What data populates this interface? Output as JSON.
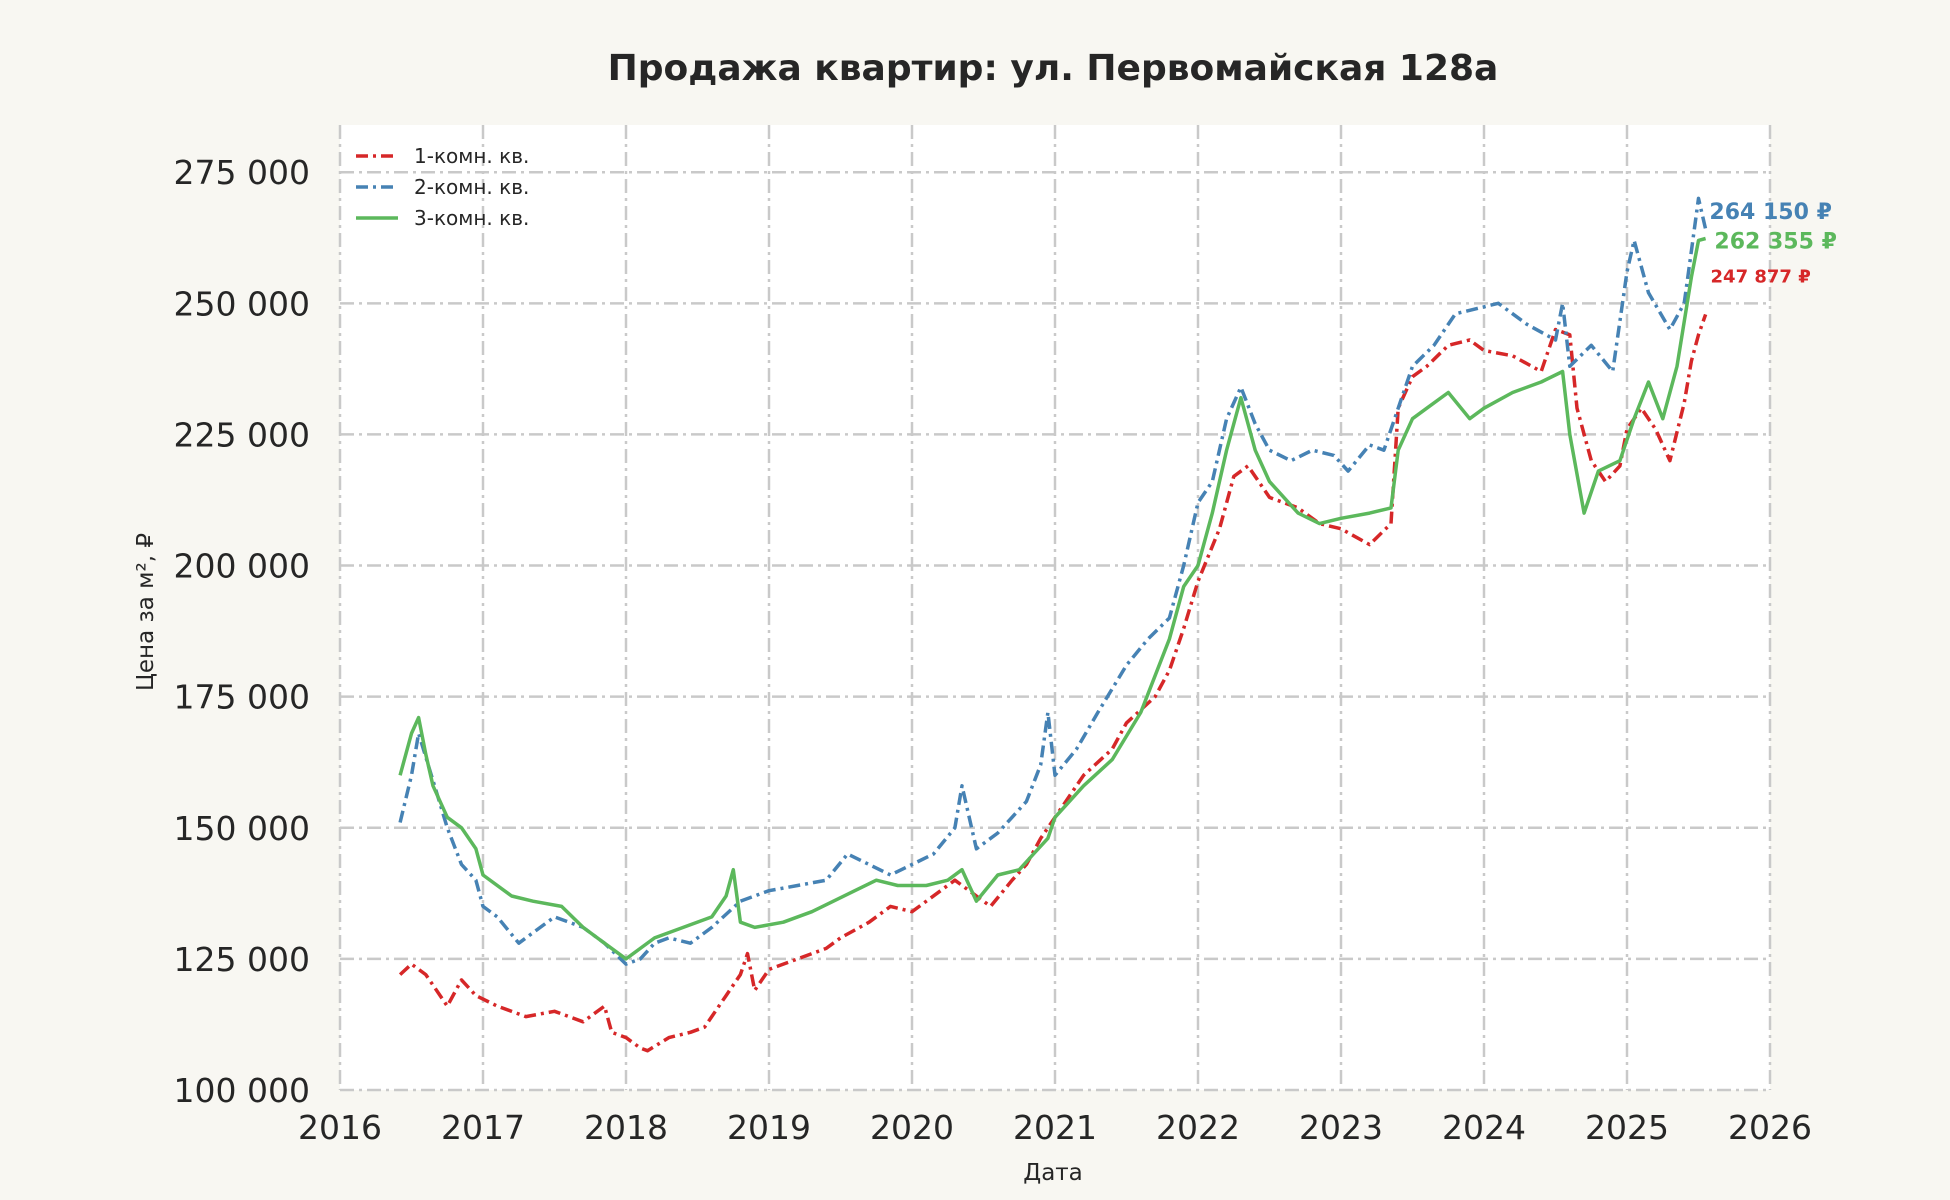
{
  "chart_data": {
    "type": "line",
    "title": "Продажа квартир: ул. Первомайская 128а",
    "xlabel": "Дата",
    "ylabel": "Цена за м², ₽",
    "xlim": [
      2016,
      2026
    ],
    "ylim": [
      100000,
      284000
    ],
    "x_ticks": [
      2016,
      2017,
      2018,
      2019,
      2020,
      2021,
      2022,
      2023,
      2024,
      2025,
      2026
    ],
    "x_tick_labels": [
      "2016",
      "2017",
      "2018",
      "2019",
      "2020",
      "2021",
      "2022",
      "2023",
      "2024",
      "2025",
      "2026"
    ],
    "y_ticks": [
      100000,
      125000,
      150000,
      175000,
      200000,
      225000,
      250000,
      275000
    ],
    "y_tick_labels": [
      "100 000",
      "125 000",
      "150 000",
      "175 000",
      "200 000",
      "225 000",
      "250 000",
      "275 000"
    ],
    "grid": true,
    "legend_position": "top-left",
    "series": [
      {
        "name": "1-комн. кв.",
        "color": "#d62728",
        "line_style": "dash-dot",
        "end_label": "247 877 ₽",
        "x": [
          2016.42,
          2016.5,
          2016.6,
          2016.75,
          2016.85,
          2016.95,
          2017.1,
          2017.3,
          2017.5,
          2017.7,
          2017.85,
          2017.9,
          2018.0,
          2018.1,
          2018.15,
          2018.3,
          2018.45,
          2018.55,
          2018.7,
          2018.8,
          2018.85,
          2018.9,
          2019.0,
          2019.2,
          2019.4,
          2019.5,
          2019.7,
          2019.85,
          2020.0,
          2020.2,
          2020.3,
          2020.45,
          2020.55,
          2020.7,
          2020.8,
          2020.9,
          2021.0,
          2021.2,
          2021.4,
          2021.5,
          2021.7,
          2021.8,
          2021.9,
          2022.0,
          2022.15,
          2022.25,
          2022.35,
          2022.5,
          2022.7,
          2022.85,
          2023.0,
          2023.2,
          2023.35,
          2023.4,
          2023.5,
          2023.6,
          2023.75,
          2023.9,
          2024.0,
          2024.2,
          2024.4,
          2024.5,
          2024.6,
          2024.65,
          2024.75,
          2024.85,
          2024.95,
          2025.0,
          2025.1,
          2025.2,
          2025.3,
          2025.4,
          2025.45,
          2025.5,
          2025.55
        ],
        "y": [
          122000,
          124000,
          122000,
          116000,
          121000,
          118000,
          116000,
          114000,
          115000,
          113000,
          116000,
          111000,
          110000,
          108000,
          107500,
          110000,
          111000,
          112000,
          118000,
          122000,
          126000,
          119000,
          123000,
          125000,
          127000,
          129000,
          132000,
          135000,
          134000,
          138000,
          140000,
          137000,
          135000,
          140000,
          143000,
          148000,
          152000,
          160000,
          165000,
          170000,
          175000,
          180000,
          188000,
          197000,
          207000,
          217000,
          219000,
          213000,
          211000,
          208000,
          207000,
          204000,
          208000,
          230000,
          236000,
          238000,
          242000,
          243000,
          241000,
          240000,
          237000,
          245000,
          244000,
          230000,
          220000,
          216000,
          219000,
          226000,
          230000,
          226000,
          220000,
          231000,
          239000,
          244000,
          247877
        ]
      },
      {
        "name": "2-комн. кв.",
        "color": "#4682b4",
        "line_style": "dash-dot",
        "end_label": "264 150 ₽",
        "x": [
          2016.42,
          2016.5,
          2016.55,
          2016.65,
          2016.75,
          2016.85,
          2016.95,
          2017.0,
          2017.1,
          2017.25,
          2017.35,
          2017.5,
          2017.7,
          2017.85,
          2018.0,
          2018.1,
          2018.2,
          2018.3,
          2018.45,
          2018.6,
          2018.8,
          2019.0,
          2019.2,
          2019.4,
          2019.55,
          2019.7,
          2019.85,
          2020.0,
          2020.15,
          2020.3,
          2020.35,
          2020.45,
          2020.6,
          2020.8,
          2020.9,
          2020.95,
          2021.0,
          2021.15,
          2021.3,
          2021.5,
          2021.65,
          2021.8,
          2021.9,
          2022.0,
          2022.1,
          2022.2,
          2022.3,
          2022.4,
          2022.5,
          2022.65,
          2022.8,
          2022.95,
          2023.05,
          2023.2,
          2023.3,
          2023.4,
          2023.5,
          2023.65,
          2023.8,
          2023.95,
          2024.1,
          2024.3,
          2024.5,
          2024.55,
          2024.6,
          2024.75,
          2024.9,
          2025.0,
          2025.05,
          2025.15,
          2025.3,
          2025.4,
          2025.45,
          2025.5,
          2025.55
        ],
        "y": [
          151000,
          160000,
          168000,
          159000,
          150000,
          143000,
          140000,
          135000,
          133000,
          128000,
          130000,
          133000,
          131000,
          128000,
          124000,
          125000,
          128000,
          129000,
          128000,
          131000,
          136000,
          138000,
          139000,
          140000,
          145000,
          143000,
          141000,
          143000,
          145000,
          150000,
          158000,
          146000,
          149000,
          155000,
          162000,
          172000,
          160000,
          165000,
          172000,
          181000,
          186000,
          190000,
          200000,
          212000,
          216000,
          228000,
          234000,
          227000,
          222000,
          220000,
          222000,
          221000,
          218000,
          223000,
          222000,
          230000,
          238000,
          242000,
          248000,
          249000,
          250000,
          246000,
          243000,
          250000,
          238000,
          242000,
          237000,
          256000,
          262000,
          252000,
          245000,
          250000,
          260000,
          270000,
          264150
        ]
      },
      {
        "name": "3-комн. кв.",
        "color": "#5cb85c",
        "line_style": "solid",
        "end_label": "262 355 ₽",
        "x": [
          2016.42,
          2016.5,
          2016.55,
          2016.6,
          2016.65,
          2016.75,
          2016.85,
          2016.95,
          2017.0,
          2017.2,
          2017.35,
          2017.55,
          2017.7,
          2017.85,
          2018.0,
          2018.1,
          2018.2,
          2018.4,
          2018.6,
          2018.7,
          2018.75,
          2018.8,
          2018.9,
          2019.1,
          2019.3,
          2019.45,
          2019.6,
          2019.75,
          2019.9,
          2020.1,
          2020.25,
          2020.35,
          2020.45,
          2020.6,
          2020.75,
          2020.85,
          2020.95,
          2021.0,
          2021.2,
          2021.4,
          2021.6,
          2021.8,
          2021.9,
          2022.0,
          2022.1,
          2022.2,
          2022.3,
          2022.4,
          2022.5,
          2022.7,
          2022.85,
          2023.0,
          2023.2,
          2023.35,
          2023.4,
          2023.5,
          2023.6,
          2023.75,
          2023.9,
          2024.0,
          2024.2,
          2024.4,
          2024.55,
          2024.6,
          2024.7,
          2024.8,
          2024.95,
          2025.05,
          2025.15,
          2025.25,
          2025.35,
          2025.45,
          2025.5,
          2025.55
        ],
        "y": [
          160000,
          168000,
          171000,
          164000,
          158000,
          152000,
          150000,
          146000,
          141000,
          137000,
          136000,
          135000,
          131000,
          128000,
          125000,
          127000,
          129000,
          131000,
          133000,
          137000,
          142000,
          132000,
          131000,
          132000,
          134000,
          136000,
          138000,
          140000,
          139000,
          139000,
          140000,
          142000,
          136000,
          141000,
          142000,
          145000,
          148000,
          152000,
          158000,
          163000,
          172000,
          186000,
          196000,
          200000,
          210000,
          222000,
          232000,
          222000,
          216000,
          210000,
          208000,
          209000,
          210000,
          211000,
          222000,
          228000,
          230000,
          233000,
          228000,
          230000,
          233000,
          235000,
          237000,
          225000,
          210000,
          218000,
          220000,
          228000,
          235000,
          228000,
          238000,
          255000,
          262000,
          262355
        ]
      }
    ]
  }
}
